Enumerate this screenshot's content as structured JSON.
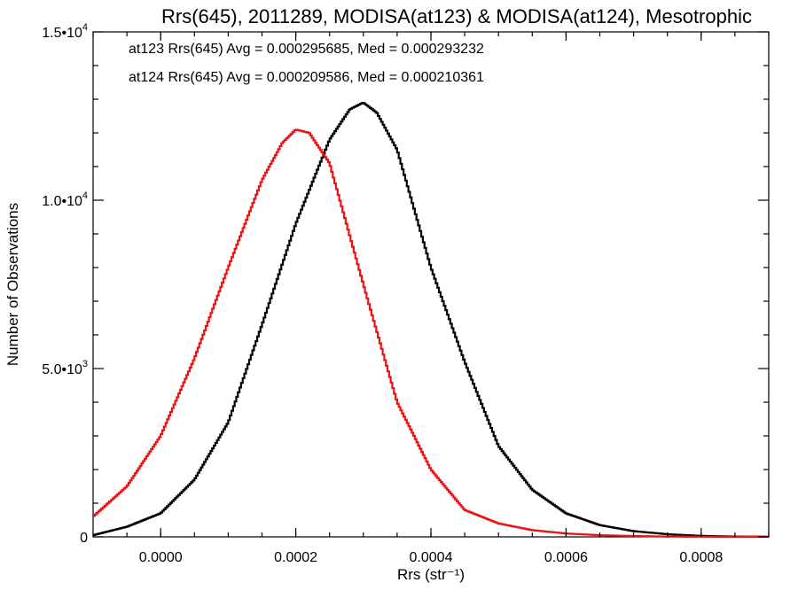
{
  "chart_data": {
    "type": "line",
    "title": "Rrs(645), 2011289, MODISA(at123) & MODISA(at124), Mesotrophic",
    "xlabel": "Rrs (str⁻¹)",
    "ylabel": "Number of Observations",
    "xlim": [
      -0.0001,
      0.0009
    ],
    "ylim": [
      0,
      15000
    ],
    "xticks": [
      {
        "value": 0.0,
        "label": "0.0000"
      },
      {
        "value": 0.0002,
        "label": "0.0002"
      },
      {
        "value": 0.0004,
        "label": "0.0004"
      },
      {
        "value": 0.0006,
        "label": "0.0006"
      },
      {
        "value": 0.0008,
        "label": "0.0008"
      }
    ],
    "yticks": [
      {
        "value": 0,
        "mant": "0",
        "exp": ""
      },
      {
        "value": 5000,
        "mant": "5.0•10",
        "exp": "3"
      },
      {
        "value": 10000,
        "mant": "1.0•10",
        "exp": "4"
      },
      {
        "value": 15000,
        "mant": "1.5•10",
        "exp": "4"
      }
    ],
    "grid": false,
    "legend_position": "top-left",
    "annotations": [
      {
        "text": "at123 Rrs(645) Avg = 0.000295685, Med = 0.000293232",
        "color": "#000000"
      },
      {
        "text": "at124 Rrs(645) Avg = 0.000209586, Med = 0.000210361",
        "color": "#ee1111"
      }
    ],
    "series": [
      {
        "color": "#000000",
        "x": [
          -0.0001,
          -5e-05,
          0.0,
          5e-05,
          0.0001,
          0.00015,
          0.0002,
          0.00025,
          0.00028,
          0.0003,
          0.00032,
          0.00035,
          0.0004,
          0.00045,
          0.0005,
          0.00055,
          0.0006,
          0.00065,
          0.0007,
          0.00075,
          0.0008,
          0.00085,
          0.0009
        ],
        "y": [
          50,
          300,
          700,
          1700,
          3400,
          6300,
          9300,
          11800,
          12700,
          12900,
          12600,
          11500,
          8000,
          5200,
          2700,
          1400,
          700,
          350,
          170,
          80,
          30,
          10,
          5
        ]
      },
      {
        "color": "#ee1111",
        "x": [
          -0.0001,
          -5e-05,
          0.0,
          5e-05,
          0.0001,
          0.00015,
          0.00018,
          0.0002,
          0.00022,
          0.00025,
          0.0003,
          0.00035,
          0.0004,
          0.00045,
          0.0005,
          0.00055,
          0.0006,
          0.00065,
          0.0007,
          0.00075,
          0.0008,
          0.00085,
          0.0009
        ],
        "y": [
          600,
          1500,
          3000,
          5300,
          8000,
          10600,
          11700,
          12100,
          12000,
          11100,
          7500,
          4000,
          2000,
          800,
          400,
          200,
          100,
          50,
          25,
          10,
          5,
          3,
          2
        ]
      }
    ]
  }
}
